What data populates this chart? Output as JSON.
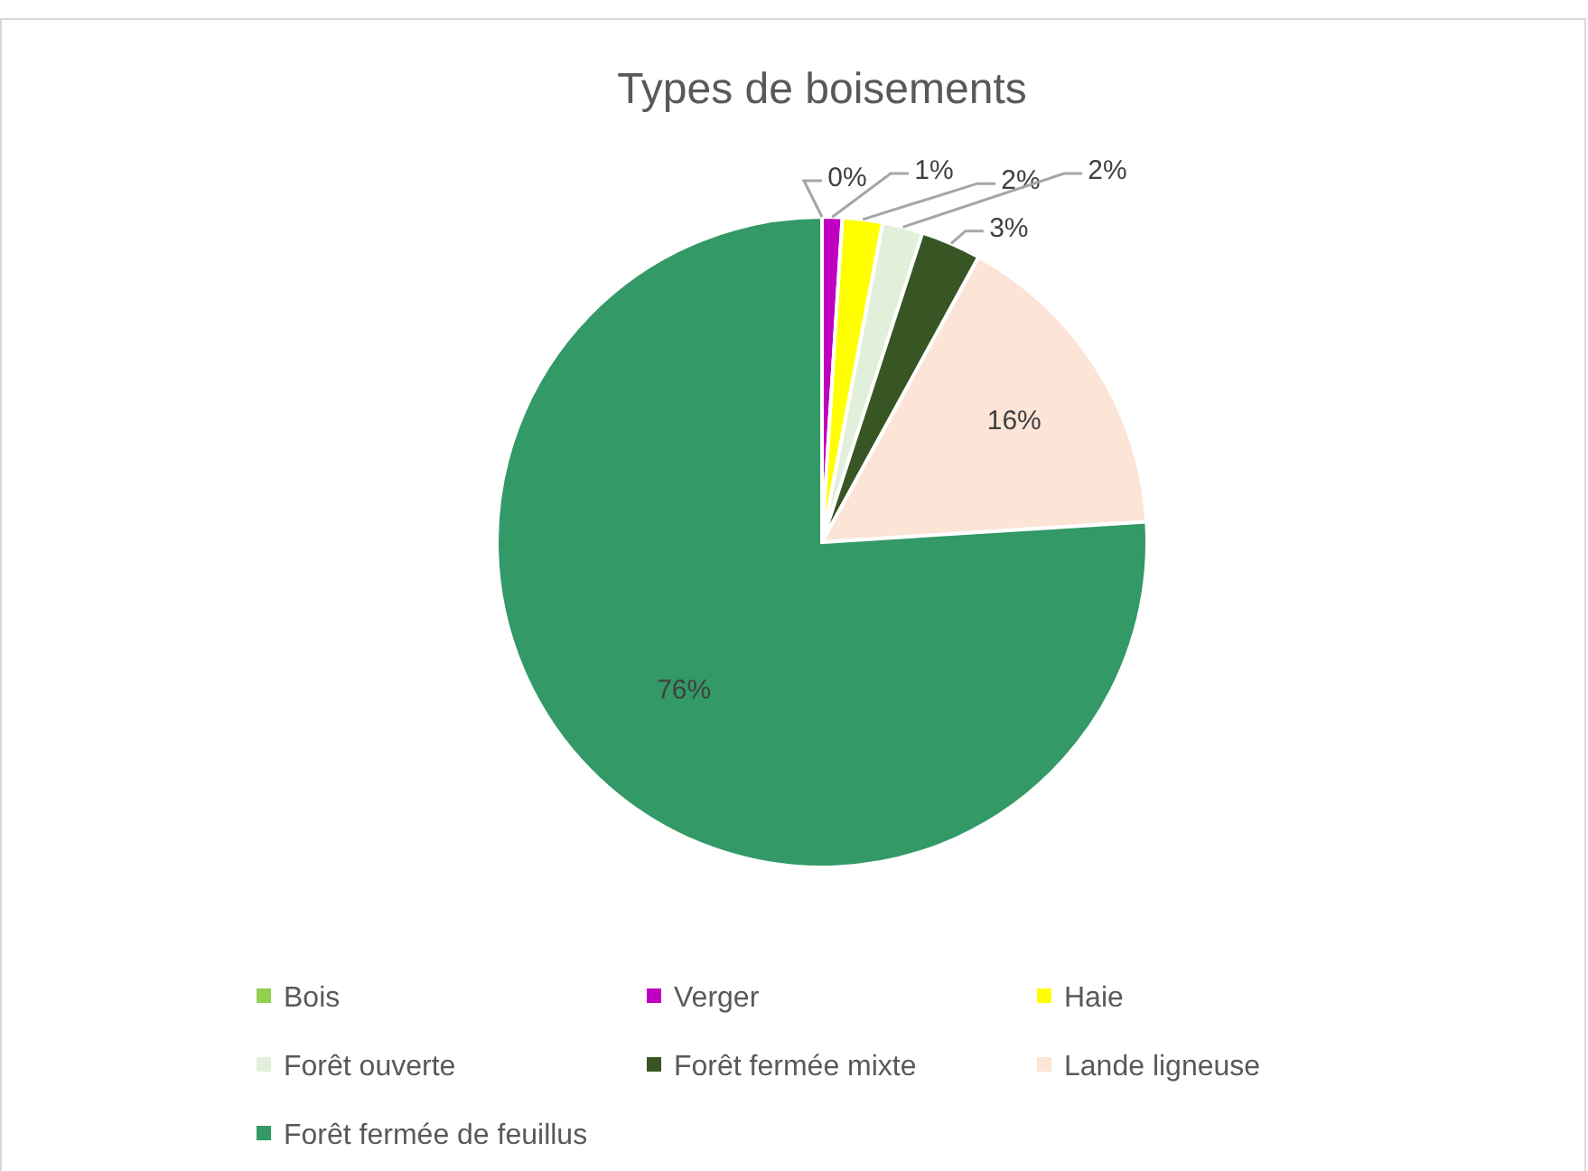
{
  "chart_data": {
    "type": "pie",
    "title": "Types de boisements",
    "categories": [
      "Bois",
      "Verger",
      "Haie",
      "Forêt ouverte",
      "Forêt fermée mixte",
      "Lande ligneuse",
      "Forêt fermée de feuillus"
    ],
    "values": [
      0,
      1,
      2,
      2,
      3,
      16,
      76
    ],
    "colors": [
      "#92d050",
      "#c000c0",
      "#ffff00",
      "#e2efda",
      "#375623",
      "#fce4d6",
      "#339966"
    ],
    "value_labels": [
      "0%",
      "1%",
      "2%",
      "2%",
      "3%",
      "16%",
      "76%"
    ],
    "legend": "bottom"
  }
}
